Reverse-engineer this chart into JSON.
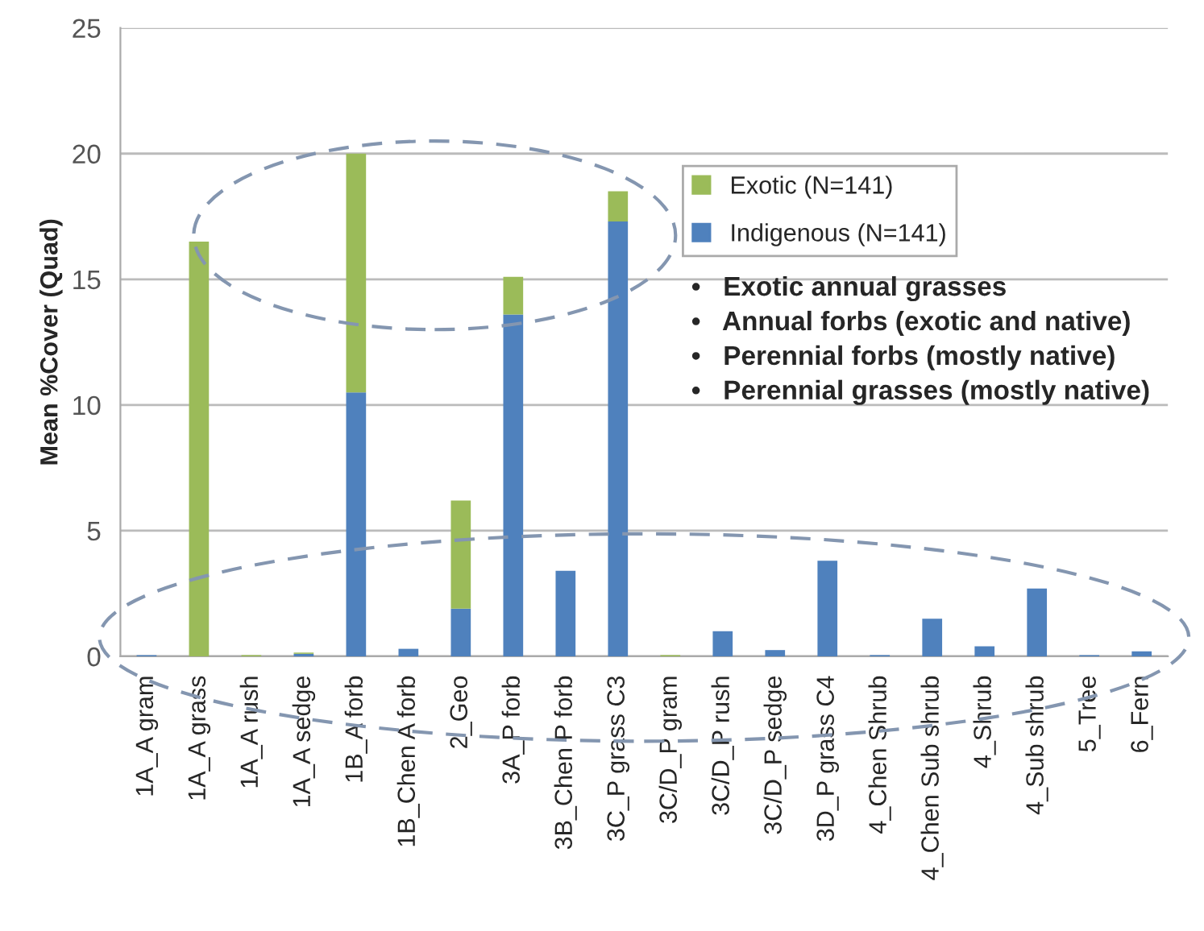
{
  "chart_data": {
    "type": "bar",
    "stacked": true,
    "ylabel": "Mean %Cover (Quad)",
    "categories": [
      "1A_A gram",
      "1A_A grass",
      "1A_A rush",
      "1A_A sedge",
      "1B_A forb",
      "1B_Chen A forb",
      "2_Geo",
      "3A_P forb",
      "3B_Chen P forb",
      "3C_P grass C3",
      "3C/D_P gram",
      "3C/D_P rush",
      "3C/D_P sedge",
      "3D_P grass C4",
      "4_Chen Shrub",
      "4_Chen Sub shrub",
      "4_Shrub",
      "4_Sub shrub",
      "5_Tree",
      "6_Fern"
    ],
    "series": [
      {
        "name": "Indigenous (N=141)",
        "color": "#4f81bd",
        "values": [
          0.05,
          0,
          0,
          0.1,
          10.5,
          0.3,
          1.9,
          13.6,
          3.4,
          17.3,
          0,
          1.0,
          0.25,
          3.8,
          0.05,
          1.5,
          0.4,
          2.7,
          0.05,
          0.2
        ]
      },
      {
        "name": "Exotic (N=141)",
        "color": "#9bbb59",
        "values": [
          0,
          16.5,
          0.05,
          0.05,
          9.5,
          0,
          4.3,
          1.5,
          0,
          1.2,
          0.05,
          0,
          0,
          0,
          0,
          0,
          0,
          0,
          0,
          0
        ]
      }
    ],
    "ylim": [
      0,
      25
    ],
    "yticks": [
      0,
      5,
      10,
      15,
      20,
      25
    ],
    "grid": "y",
    "legend": "top right",
    "annotations": [
      "•   Exotic annual grasses",
      "•   Annual forbs (exotic and native)",
      "•   Perennial forbs (mostly native)",
      "•   Perennial grasses (mostly native)"
    ]
  }
}
